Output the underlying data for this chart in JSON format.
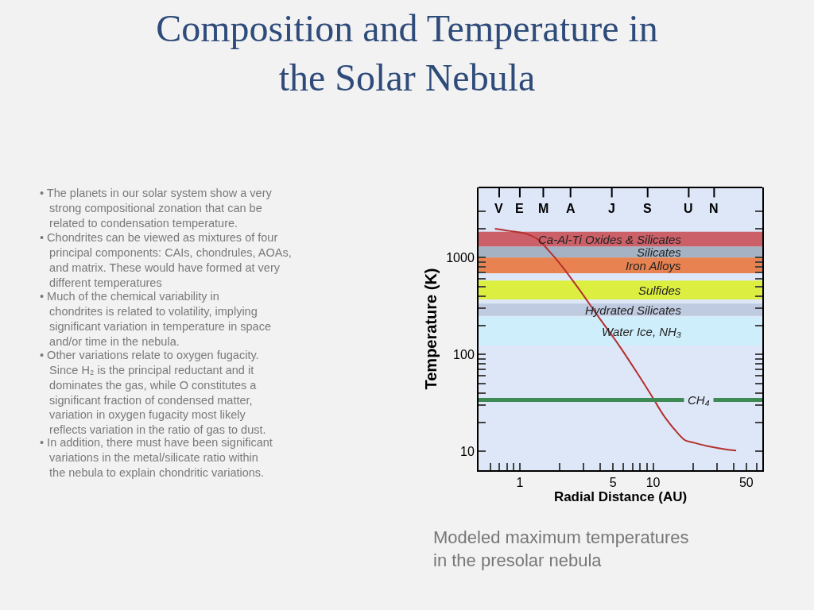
{
  "chart_data": {
    "type": "line",
    "title": "Composition and Temperature in the Solar Nebula",
    "xlabel": "Radial Distance (AU)",
    "ylabel": "Temperature (K)",
    "log": "xy",
    "grid": false,
    "marker": "none",
    "line_style": "solid",
    "xlim": [
      0.49,
      66
    ],
    "ylim": [
      6.4,
      5300
    ],
    "xticks": [
      {
        "value": 0.6,
        "label": null
      },
      {
        "value": 0.7,
        "label": null
      },
      {
        "value": 0.8,
        "label": null
      },
      {
        "value": 0.9,
        "label": null
      },
      1,
      {
        "value": 2,
        "label": null
      },
      {
        "value": 3,
        "label": null
      },
      {
        "value": 4,
        "label": null
      },
      5,
      {
        "value": 6,
        "label": null
      },
      {
        "value": 7,
        "label": null
      },
      {
        "value": 8,
        "label": null
      },
      {
        "value": 9,
        "label": null
      },
      10,
      {
        "value": 20,
        "label": null
      },
      {
        "value": 30,
        "label": null
      },
      {
        "value": 40,
        "label": null
      },
      50,
      {
        "value": 60,
        "label": null
      }
    ],
    "yticks": [
      10,
      {
        "value": 20,
        "label": null
      },
      {
        "value": 30,
        "label": null
      },
      {
        "value": 40,
        "label": null
      },
      {
        "value": 50,
        "label": null
      },
      {
        "value": 60,
        "label": null
      },
      {
        "value": 70,
        "label": null
      },
      {
        "value": 80,
        "label": null
      },
      {
        "value": 90,
        "label": null
      },
      100,
      {
        "value": 200,
        "label": null
      },
      {
        "value": 300,
        "label": null
      },
      {
        "value": 400,
        "label": null
      },
      {
        "value": 500,
        "label": null
      },
      {
        "value": 600,
        "label": null
      },
      {
        "value": 700,
        "label": null
      },
      {
        "value": 800,
        "label": null
      },
      {
        "value": 900,
        "label": null
      },
      1000,
      {
        "value": 2000,
        "label": null
      },
      {
        "value": 3000,
        "label": null
      }
    ],
    "series": [
      {
        "color": "#b5302f",
        "x": [
          0.65,
          0.83,
          1.1,
          1.35,
          1.65,
          2.08,
          2.73,
          3.9,
          5.6,
          7.8,
          9.8,
          12.3,
          15.4,
          17.3,
          20.3,
          26.7,
          35,
          42
        ],
        "values": [
          1990,
          1890,
          1770,
          1560,
          1180,
          810,
          490,
          244,
          122,
          61,
          37,
          22.4,
          15.3,
          13.1,
          12.3,
          11.2,
          10.5,
          10.2
        ]
      }
    ],
    "bands": [
      {
        "axis": "y",
        "from": 1300,
        "to": 1850,
        "label": "Ca-Al-Ti Oxides & Silicates",
        "color": "#c9484f"
      },
      {
        "axis": "y",
        "from": 1000,
        "to": 1300,
        "label": "Silicates",
        "color": "#9aa8ba"
      },
      {
        "axis": "y",
        "from": 690,
        "to": 1000,
        "label": "Iron Alloys",
        "color": "#ea7032"
      },
      {
        "axis": "y",
        "from": 370,
        "to": 580,
        "label": "Sulfides",
        "color": "#dcf020"
      },
      {
        "axis": "y",
        "from": 250,
        "to": 335,
        "label": "Hydrated Silicates",
        "color": "#bac6dc"
      },
      {
        "axis": "y",
        "from": 124,
        "to": 244,
        "label": "Water Ice, NH₃",
        "color": "#cdeefb"
      }
    ],
    "ref_lines": [
      {
        "axis": "y",
        "value": 34,
        "label": "CH₄",
        "color": "#3d8a55"
      },
      {
        "axis": "x",
        "value": 0.7,
        "label": "V",
        "color": "#000000"
      },
      {
        "axis": "x",
        "value": 1.0,
        "label": "E",
        "color": "#000000"
      },
      {
        "axis": "x",
        "value": 1.5,
        "label": "M",
        "color": "#000000"
      },
      {
        "axis": "x",
        "value": 2.4,
        "label": "A",
        "color": "#000000"
      },
      {
        "axis": "x",
        "value": 4.9,
        "label": "J",
        "color": "#000000"
      },
      {
        "axis": "x",
        "value": 9.1,
        "label": "S",
        "color": "#000000"
      },
      {
        "axis": "x",
        "value": 18.5,
        "label": "U",
        "color": "#000000"
      },
      {
        "axis": "x",
        "value": 28.7,
        "label": "N",
        "color": "#000000"
      }
    ],
    "annotations": [
      "• The planets in our solar system show a very strong compositional zonation that can be related to condensation temperature.",
      "• Chondrites can be viewed as mixtures of four principal components: CAIs, chondrules, AOAs, and matrix. These would have formed at very different temperatures",
      "• Much of the chemical variability in chondrites is related to volatility, implying significant variation in temperature in space and/or time in the nebula.",
      "• Other variations relate to oxygen fugacity. Since H₂ is the principal reductant and it dominates the gas, while O constitutes a significant fraction of condensed matter, variation in oxygen fugacity most likely reflects variation in the ratio of gas to dust.",
      "• In addition, there must have been significant variations in the metal/silicate ratio within the nebula to explain chondritic variations.",
      "Modeled maximum temperatures in the presolar nebula"
    ]
  }
}
